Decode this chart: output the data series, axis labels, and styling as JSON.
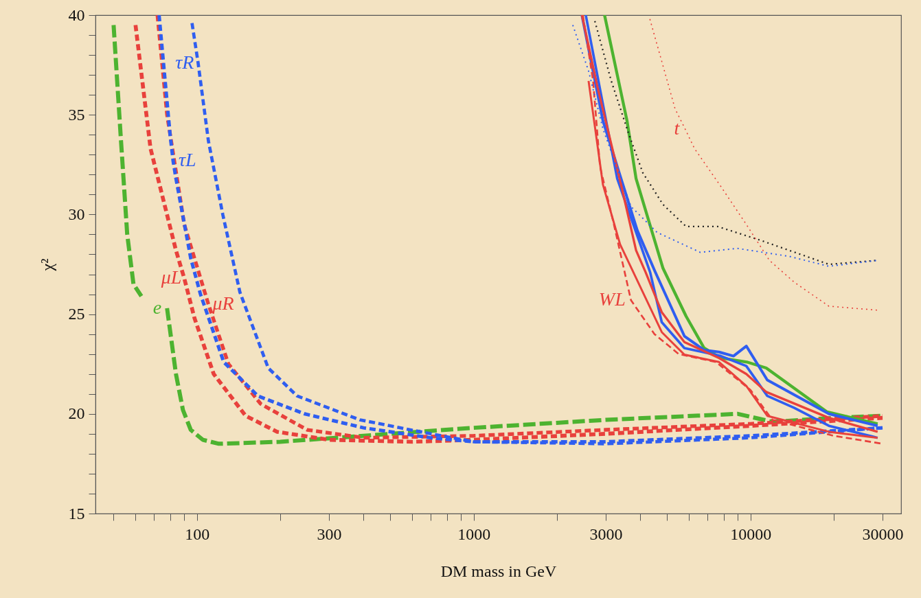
{
  "chart_data": {
    "type": "line",
    "xlabel": "DM mass in GeV",
    "ylabel": "χ²",
    "log": "x",
    "grid": false,
    "marker": "none",
    "xlim": [
      43,
      35000
    ],
    "ylim": [
      15,
      40
    ],
    "xticks": [
      {
        "value": 50,
        "label": null
      },
      {
        "value": 60,
        "label": null
      },
      {
        "value": 70,
        "label": null
      },
      {
        "value": 80,
        "label": null
      },
      {
        "value": 90,
        "label": null
      },
      100,
      {
        "value": 200,
        "label": null
      },
      300,
      {
        "value": 400,
        "label": null
      },
      {
        "value": 500,
        "label": null
      },
      {
        "value": 600,
        "label": null
      },
      {
        "value": 700,
        "label": null
      },
      {
        "value": 800,
        "label": null
      },
      {
        "value": 900,
        "label": null
      },
      1000,
      {
        "value": 2000,
        "label": null
      },
      3000,
      {
        "value": 4000,
        "label": null
      },
      {
        "value": 5000,
        "label": null
      },
      {
        "value": 6000,
        "label": null
      },
      {
        "value": 7000,
        "label": null
      },
      {
        "value": 8000,
        "label": null
      },
      {
        "value": 9000,
        "label": null
      },
      10000,
      {
        "value": 20000,
        "label": null
      },
      30000
    ],
    "yticks": [
      15,
      {
        "value": 16,
        "label": null
      },
      {
        "value": 17,
        "label": null
      },
      {
        "value": 18,
        "label": null
      },
      {
        "value": 19,
        "label": null
      },
      20,
      {
        "value": 21,
        "label": null
      },
      {
        "value": 22,
        "label": null
      },
      {
        "value": 23,
        "label": null
      },
      {
        "value": 24,
        "label": null
      },
      25,
      {
        "value": 26,
        "label": null
      },
      {
        "value": 27,
        "label": null
      },
      {
        "value": 28,
        "label": null
      },
      {
        "value": 29,
        "label": null
      },
      30,
      {
        "value": 31,
        "label": null
      },
      {
        "value": 32,
        "label": null
      },
      {
        "value": 33,
        "label": null
      },
      {
        "value": 34,
        "label": null
      },
      35,
      {
        "value": 36,
        "label": null
      },
      {
        "value": 37,
        "label": null
      },
      {
        "value": 38,
        "label": null
      },
      {
        "value": 39,
        "label": null
      },
      40
    ],
    "series": [
      {
        "color": "#4db330",
        "line_style": "dashed",
        "x": [
          50,
          53,
          56,
          59,
          63,
          70,
          78,
          84,
          89,
          95,
          105,
          120,
          200,
          400,
          1000,
          3000,
          9000,
          12000,
          20000,
          30000
        ],
        "values": [
          39.5,
          34,
          29,
          26.5,
          25.9,
          null,
          25.3,
          22,
          20.2,
          19.2,
          18.7,
          18.5,
          18.6,
          18.9,
          19.3,
          19.7,
          20.0,
          19.6,
          19.8,
          19.9
        ]
      },
      {
        "color": "#e8413c",
        "line_style": "dashed",
        "x": [
          60,
          68,
          84,
          90,
          98,
          115,
          150,
          195,
          300,
          600,
          1000,
          3000,
          10000,
          30000
        ],
        "values": [
          39.5,
          33.3,
          28.2,
          26.8,
          24.8,
          22.0,
          19.9,
          19.1,
          18.7,
          18.6,
          18.7,
          19.0,
          19.4,
          19.8
        ]
      },
      {
        "color": "#e8413c",
        "line_style": "dashed",
        "x": [
          72,
          78,
          90,
          110,
          130,
          170,
          250,
          400,
          1000,
          3000,
          10000,
          30000
        ],
        "values": [
          40,
          35,
          29.5,
          25.5,
          22.5,
          20.5,
          19.2,
          18.8,
          18.9,
          19.2,
          19.5,
          19.9
        ]
      },
      {
        "color": "#2f5ef0",
        "line_style": "dashed",
        "x": [
          73,
          80,
          82,
          84,
          95,
          103,
          125,
          166,
          245,
          400,
          700,
          1000,
          3000,
          10000,
          30000
        ],
        "values": [
          40,
          34,
          32.7,
          31.8,
          27.8,
          26,
          22.6,
          20.9,
          20.0,
          19.3,
          18.8,
          18.6,
          18.6,
          18.9,
          19.3
        ]
      },
      {
        "color": "#2f5ef0",
        "line_style": "dashed",
        "x": [
          96,
          101,
          110,
          124,
          143,
          181,
          230,
          388,
          700,
          1000,
          3000,
          10000,
          30000
        ],
        "values": [
          39.6,
          37.6,
          33.7,
          30,
          26.1,
          22.3,
          20.9,
          19.7,
          19.0,
          18.6,
          18.5,
          18.8,
          19.3
        ]
      },
      {
        "color": "#4db330",
        "line_style": "solid",
        "x": [
          2970,
          3580,
          3860,
          4830,
          5850,
          6800,
          7820,
          9700,
          11400,
          18900,
          28800
        ],
        "values": [
          40,
          34.7,
          31.8,
          27.3,
          24.9,
          23.3,
          22.8,
          22.6,
          22.3,
          20.1,
          19.5
        ]
      },
      {
        "color": "#2f5ef0",
        "line_style": "solid",
        "x": [
          2460,
          2930,
          3900,
          4500,
          5770,
          6800,
          7700,
          8680,
          9660,
          11500,
          19200,
          28800
        ],
        "values": [
          40,
          34.7,
          29.2,
          27.2,
          23.9,
          23.2,
          23.1,
          22.9,
          23.4,
          21.7,
          20.0,
          19.4
        ]
      },
      {
        "color": "#2f5ef0",
        "line_style": "solid",
        "x": [
          2540,
          3300,
          4340,
          4780,
          5770,
          7820,
          9660,
          11500,
          14400,
          19200,
          28800
        ],
        "values": [
          40,
          31.8,
          27.1,
          24.6,
          23.3,
          22.9,
          22.4,
          20.9,
          20.3,
          19.4,
          18.8
        ]
      },
      {
        "color": "#e8413c",
        "line_style": "solid",
        "x": [
          2460,
          2800,
          3420,
          3860,
          4180,
          4780,
          5770,
          7700,
          9660,
          11400,
          19200,
          28800
        ],
        "values": [
          40,
          36.4,
          31.4,
          28.2,
          27.1,
          25.1,
          23.6,
          22.8,
          22.0,
          21.1,
          19.8,
          19.1
        ]
      },
      {
        "color": "#e8413c",
        "line_style": "solid",
        "x": [
          2600,
          2930,
          3380,
          4780,
          5770,
          7700,
          9660,
          11500,
          19200,
          28800
        ],
        "values": [
          36.7,
          31.5,
          28.5,
          24.1,
          22.97,
          22.6,
          21.4,
          19.9,
          19.1,
          18.8
        ]
      },
      {
        "color": "#e8413c",
        "line_style": "dashed",
        "x": [
          2480,
          2700,
          2860,
          3210,
          3700,
          4500,
          5500,
          7500,
          10000,
          12000,
          20000,
          30000
        ],
        "values": [
          40,
          36.7,
          32.4,
          29.5,
          25.7,
          24.0,
          23.0,
          22.6,
          21.2,
          19.7,
          18.9,
          18.5
        ]
      },
      {
        "color": "#222222",
        "line_style": "dotted",
        "x": [
          2740,
          3140,
          3620,
          4080,
          4830,
          5850,
          7600,
          10900,
          19200,
          28800
        ],
        "values": [
          39.7,
          36.7,
          34.1,
          32.1,
          30.5,
          29.4,
          29.4,
          28.7,
          27.5,
          27.7
        ]
      },
      {
        "color": "#2f5ef0",
        "line_style": "dotted",
        "x": [
          2280,
          2600,
          2930,
          3700,
          4600,
          6590,
          8960,
          13800,
          19200,
          28800
        ],
        "values": [
          39.5,
          37.2,
          34.3,
          30.4,
          29.1,
          28.1,
          28.3,
          27.9,
          27.4,
          27.7
        ]
      },
      {
        "color": "#e8413c",
        "line_style": "dotted",
        "x": [
          4330,
          5340,
          5800,
          6280,
          7820,
          9660,
          11700,
          14400,
          19200,
          28800
        ],
        "values": [
          39.8,
          35.3,
          34.3,
          33.3,
          31.4,
          29.5,
          27.7,
          26.6,
          25.4,
          25.2
        ]
      }
    ],
    "annotations": [
      {
        "text": "τR",
        "x": 101,
        "y": 37.6
      },
      {
        "text": "τL",
        "x": 82,
        "y": 32.7
      },
      {
        "text": "μL",
        "x": 90,
        "y": 26.8
      },
      {
        "text": "e",
        "x": 78,
        "y": 25.3
      },
      {
        "text": "μR",
        "x": 110,
        "y": 25.5
      },
      {
        "text": "WL",
        "x": 3700,
        "y": 25.7
      },
      {
        "text": "t",
        "x": 5800,
        "y": 34.3
      }
    ]
  }
}
